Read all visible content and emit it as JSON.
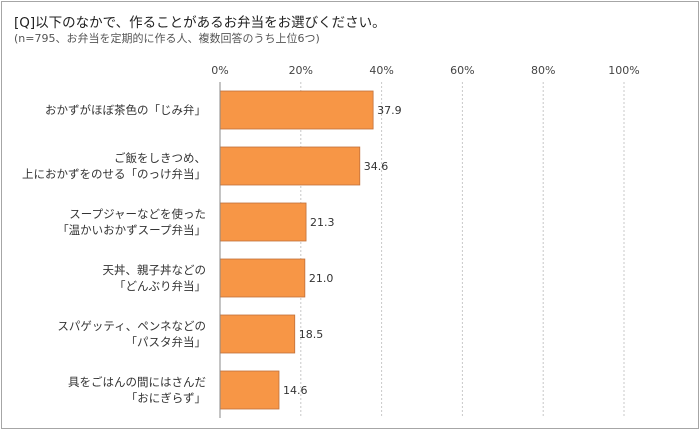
{
  "header": {
    "title": "[Q]以下のなかで、作ることがあるお弁当をお選びください。",
    "subtitle": "(n=795、お弁当を定期的に作る人、複数回答のうち上位6つ)"
  },
  "chart_data": {
    "type": "bar",
    "orientation": "horizontal",
    "title": "[Q]以下のなかで、作ることがあるお弁当をお選びください。",
    "subtitle": "(n=795、お弁当を定期的に作る人、複数回答のうち上位6つ)",
    "categories": [
      [
        "おかずがほぼ茶色の「じみ弁」"
      ],
      [
        "ご飯をしきつめ、",
        "上におかずをのせる「のっけ弁当」"
      ],
      [
        "スープジャーなどを使った",
        "「温かいおかずスープ弁当」"
      ],
      [
        "天丼、親子丼などの",
        "「どんぶり弁当」"
      ],
      [
        "スパゲッティ、ペンネなどの",
        "「パスタ弁当」"
      ],
      [
        "具をごはんの間にはさんだ",
        "「おにぎらず」"
      ]
    ],
    "values": [
      37.9,
      34.6,
      21.3,
      21.0,
      18.5,
      14.6
    ],
    "value_labels": [
      "37.9",
      "34.6",
      "21.3",
      "21.0",
      "18.5",
      "14.6"
    ],
    "xlim": [
      0,
      100
    ],
    "x_ticks": [
      "0%",
      "20%",
      "40%",
      "60%",
      "80%",
      "100%"
    ],
    "grid": true,
    "bar_color": "#f79646",
    "bar_edge_color": "#c0703a"
  }
}
